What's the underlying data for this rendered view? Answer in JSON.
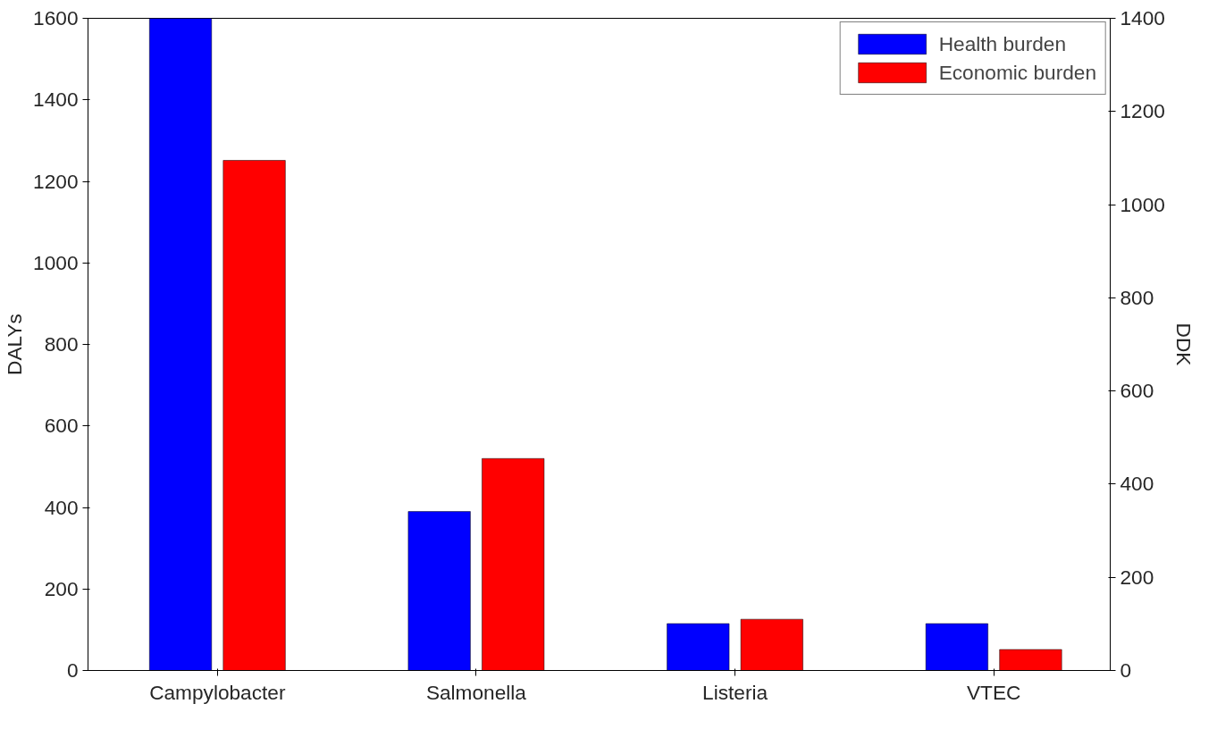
{
  "chart_data": {
    "type": "bar",
    "categories": [
      "Campylobacter",
      "Salmonella",
      "Listeria",
      "VTEC"
    ],
    "ylabel": "DALYs",
    "y2label": "DDK",
    "ylim": [
      0,
      1600
    ],
    "yticks": [
      0,
      200,
      400,
      600,
      800,
      1000,
      1200,
      1400,
      1600
    ],
    "y2lim": [
      0,
      1400
    ],
    "y2ticks": [
      0,
      200,
      400,
      600,
      800,
      1000,
      1200,
      1400
    ],
    "grid": false,
    "legend": "top right",
    "series": [
      {
        "name": "Health burden",
        "color": "#0000ff",
        "values": [
          1600,
          390,
          115,
          115
        ]
      },
      {
        "name": "Economic burden",
        "color": "#ff0000",
        "values": [
          1095,
          455,
          110,
          45
        ],
        "axis": "y2"
      }
    ]
  }
}
